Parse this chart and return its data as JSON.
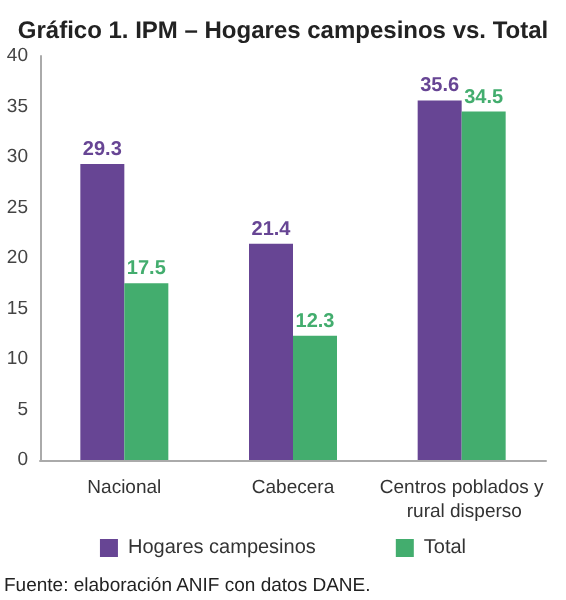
{
  "chart_data": {
    "type": "bar",
    "title": "Gráfico 1. IPM – Hogares campesinos vs. Total",
    "categories": [
      "Nacional",
      "Cabecera",
      "Centros poblados y rural disperso"
    ],
    "series": [
      {
        "name": "Hogares campesinos",
        "color": "#674594",
        "values": [
          29.3,
          21.4,
          35.6
        ]
      },
      {
        "name": "Total",
        "color": "#43ad6e",
        "values": [
          17.5,
          12.3,
          34.5
        ]
      }
    ],
    "ylim": [
      0,
      40
    ],
    "yticks": [
      0,
      5,
      10,
      15,
      20,
      25,
      30,
      35,
      40
    ],
    "grid": false,
    "legend": "bottom",
    "data_labels": true,
    "annotations": [
      "Fuente: elaboración ANIF con datos DANE."
    ]
  }
}
